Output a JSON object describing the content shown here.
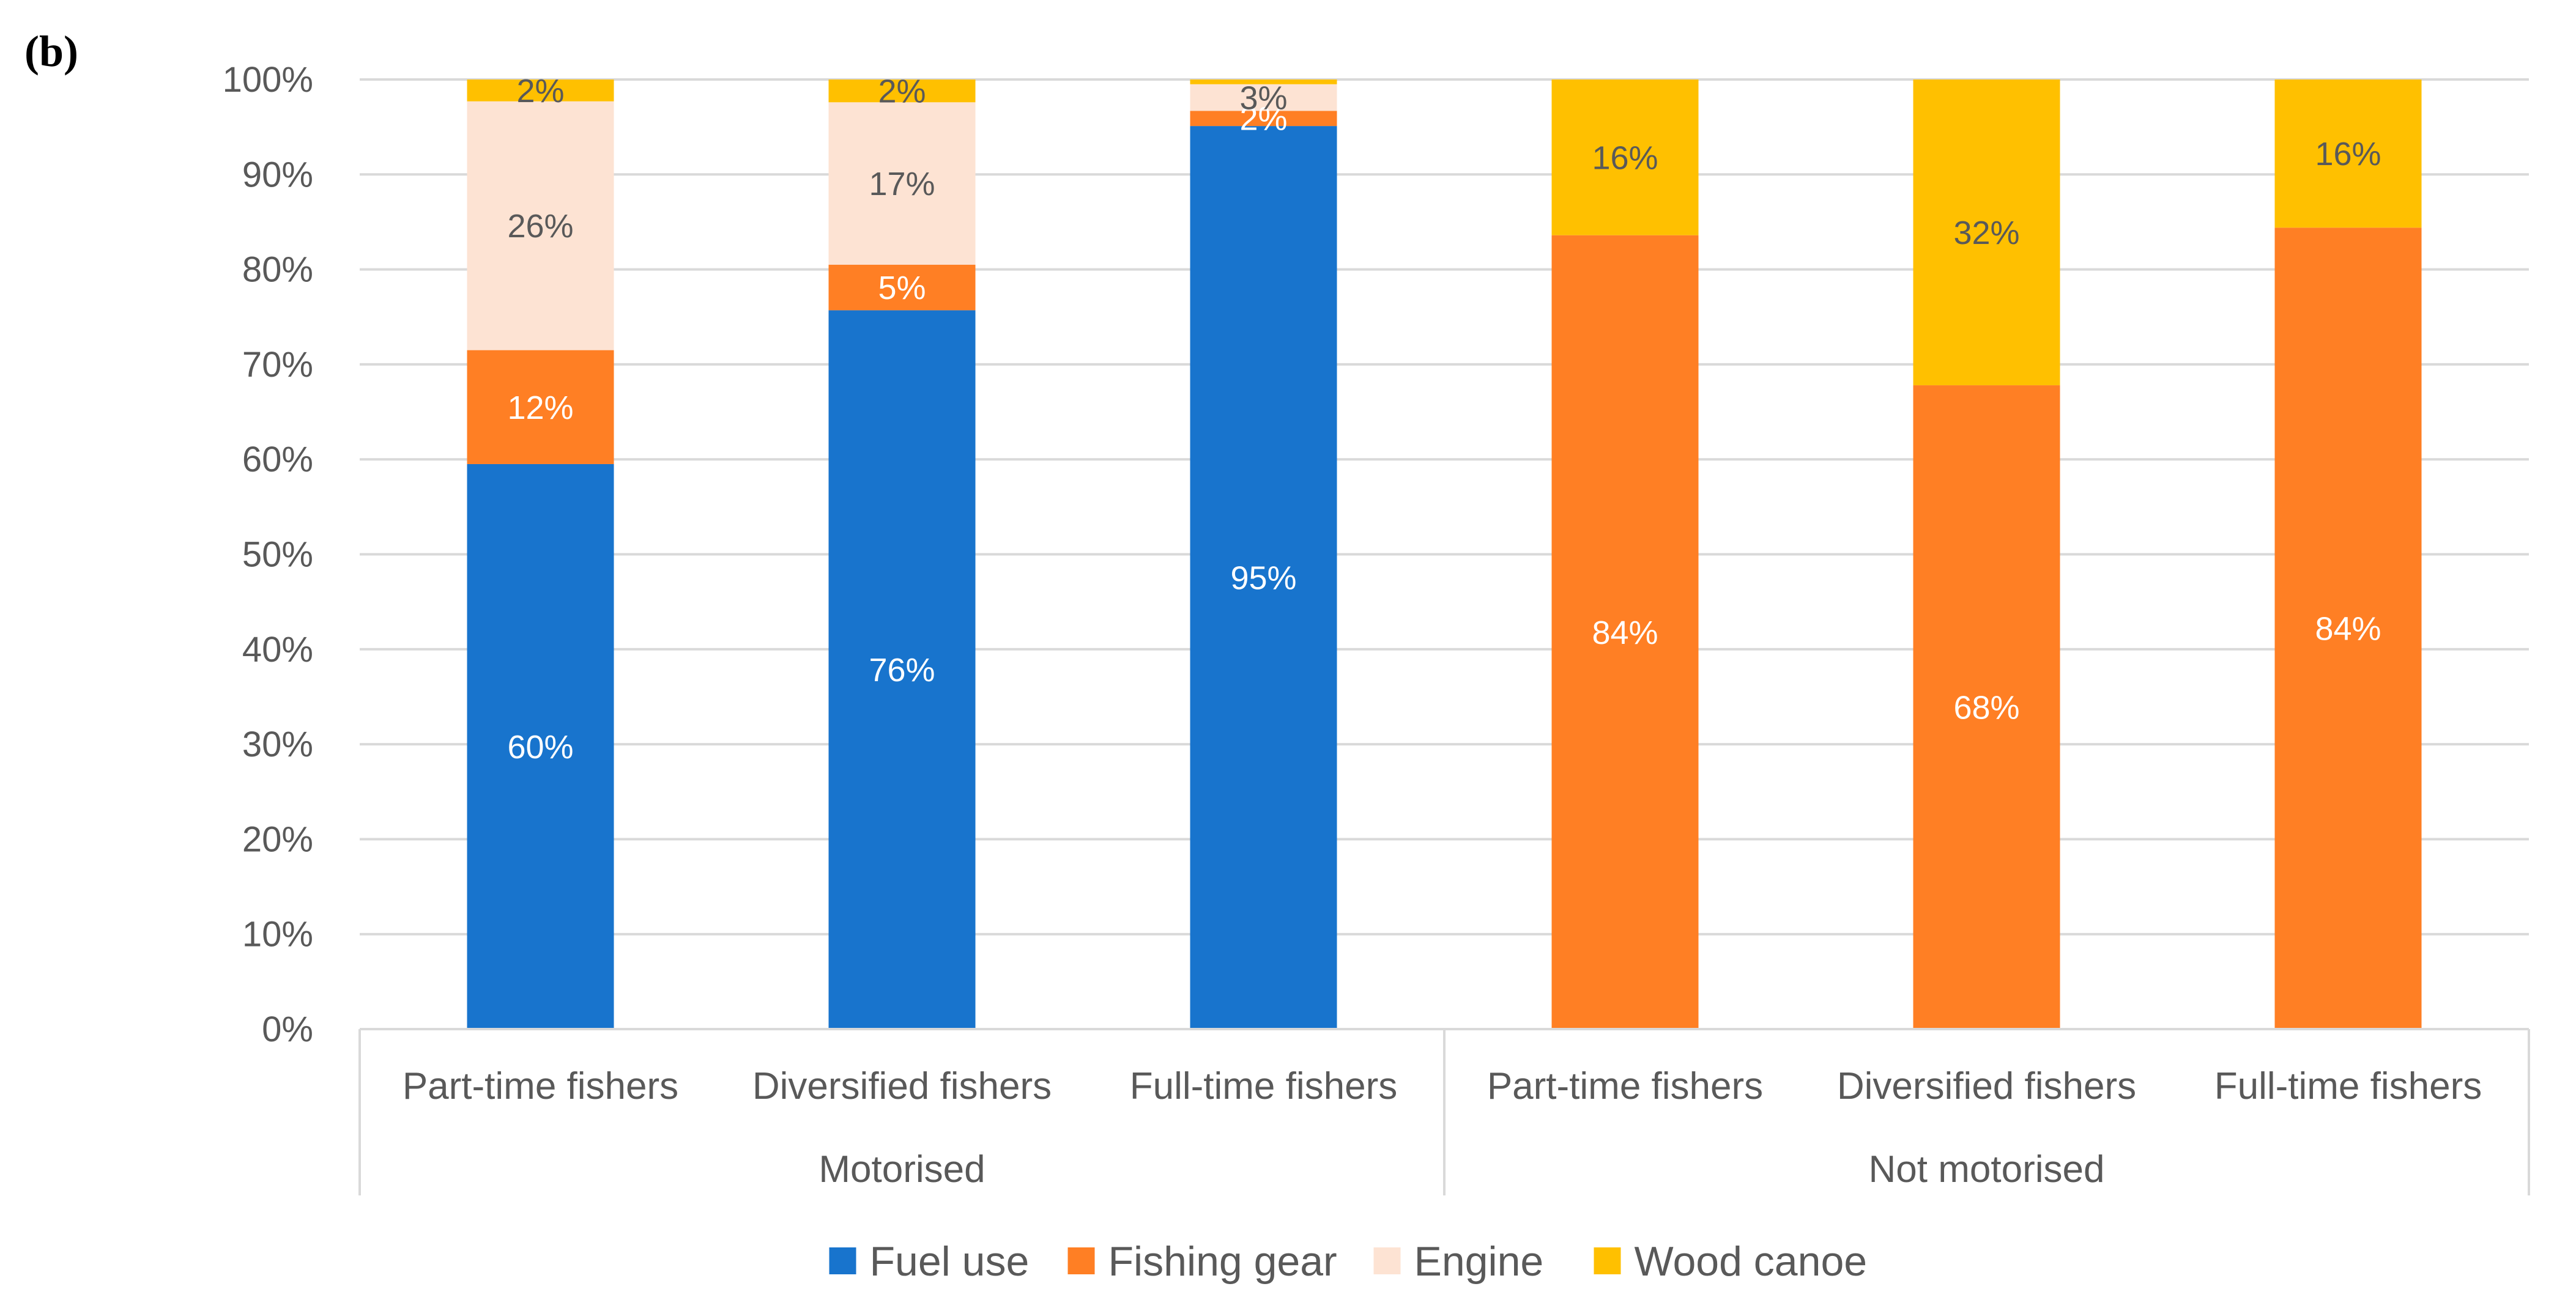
{
  "panel_label": "b",
  "chart_data": {
    "type": "bar",
    "stacked": true,
    "groups": [
      {
        "label": "Motorised",
        "categories": [
          "Part-time fishers",
          "Diversified fishers",
          "Full-time fishers"
        ]
      },
      {
        "label": "Not motorised",
        "categories": [
          "Part-time fishers",
          "Diversified fishers",
          "Full-time fishers"
        ]
      }
    ],
    "categories": [
      "Part-time fishers",
      "Diversified fishers",
      "Full-time fishers",
      "Part-time fishers",
      "Diversified fishers",
      "Full-time fishers"
    ],
    "series": [
      {
        "name": "Fuel use",
        "color": "#1874cd",
        "label_color": "#ffffff",
        "values": [
          59.5,
          75.7,
          95.1,
          0,
          0,
          0
        ],
        "labels": [
          "60%",
          "76%",
          "95%",
          "",
          "",
          ""
        ]
      },
      {
        "name": "Fishing gear",
        "color": "#ff7f24",
        "label_color": "#ffffff",
        "values": [
          12.0,
          4.8,
          1.6,
          83.6,
          67.8,
          84.4
        ],
        "labels": [
          "12%",
          "5%",
          "2%",
          "84%",
          "68%",
          "84%"
        ]
      },
      {
        "name": "Engine",
        "color": "#fde3d3",
        "label_color": "#595959",
        "values": [
          26.2,
          17.1,
          2.8,
          0,
          0,
          0
        ],
        "labels": [
          "26%",
          "17%",
          "3%",
          "",
          "",
          ""
        ]
      },
      {
        "name": "Wood canoe",
        "color": "#ffc000",
        "label_color": "#595959",
        "values": [
          2.3,
          2.4,
          0.5,
          16.4,
          32.2,
          15.6
        ],
        "labels": [
          "2%",
          "2%",
          "",
          "16%",
          "32%",
          "16%"
        ]
      }
    ],
    "yticks": [
      "0%",
      "10%",
      "20%",
      "30%",
      "40%",
      "50%",
      "60%",
      "70%",
      "80%",
      "90%",
      "100%"
    ],
    "ylim": [
      0,
      100
    ],
    "grid": true,
    "legend_position": "bottom"
  }
}
